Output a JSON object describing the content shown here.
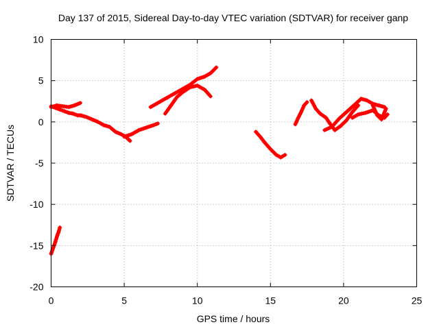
{
  "chart_data": {
    "type": "scatter",
    "title": "Day 137 of 2015, Sidereal Day-to-day VTEC variation (SDTVAR) for receiver ganp",
    "xlabel": "GPS time / hours",
    "ylabel": "SDTVAR / TECUs",
    "xlim": [
      0,
      25
    ],
    "ylim": [
      -20,
      10
    ],
    "xticks": [
      "0",
      "5",
      "10",
      "15",
      "20",
      "25"
    ],
    "yticks": [
      "-20",
      "-15",
      "-10",
      "-5",
      "0",
      "5",
      "10"
    ],
    "grid": true,
    "marker": "plus",
    "color": "#ff0000",
    "series": [
      {
        "x": [
          0.0,
          0.1,
          0.2,
          0.3,
          0.4,
          0.5,
          0.6
        ],
        "y": [
          -16.0,
          -15.5,
          -15.0,
          -14.5,
          -13.9,
          -13.4,
          -12.8
        ]
      },
      {
        "x": [
          0.0,
          0.3,
          0.6,
          0.9,
          1.2,
          1.5,
          1.8,
          2.0,
          2.4,
          2.8,
          3.2,
          3.6,
          4.0,
          4.4,
          4.8,
          5.1,
          5.4
        ],
        "y": [
          1.9,
          1.7,
          1.5,
          1.3,
          1.1,
          1.0,
          0.8,
          0.8,
          0.6,
          0.3,
          0.0,
          -0.4,
          -0.6,
          -1.2,
          -1.5,
          -1.8,
          -2.3
        ]
      },
      {
        "x": [
          0.0,
          0.4,
          0.8,
          1.2,
          1.6,
          2.0
        ],
        "y": [
          1.8,
          2.0,
          1.9,
          1.8,
          2.0,
          2.3
        ]
      },
      {
        "x": [
          5.0,
          5.5,
          6.0,
          6.5,
          7.0,
          7.3
        ],
        "y": [
          -1.8,
          -1.5,
          -1.0,
          -0.7,
          -0.4,
          -0.2
        ]
      },
      {
        "x": [
          6.8,
          7.2,
          7.6,
          8.0,
          8.5,
          9.0,
          9.5,
          10.0,
          10.5,
          10.9,
          11.3
        ],
        "y": [
          1.8,
          2.2,
          2.6,
          3.0,
          3.5,
          4.0,
          4.5,
          5.2,
          5.5,
          5.9,
          6.6
        ]
      },
      {
        "x": [
          7.8,
          8.2,
          8.6,
          9.0,
          9.5,
          10.0,
          10.5,
          10.9
        ],
        "y": [
          1.0,
          2.0,
          3.0,
          3.6,
          4.2,
          4.4,
          3.9,
          3.1
        ]
      },
      {
        "x": [
          14.0,
          14.3,
          14.6,
          15.0,
          15.4,
          15.7,
          16.0
        ],
        "y": [
          -1.2,
          -1.8,
          -2.5,
          -3.3,
          -4.0,
          -4.3,
          -4.0
        ]
      },
      {
        "x": [
          16.7,
          16.9,
          17.1,
          17.3,
          17.5
        ],
        "y": [
          -0.3,
          0.5,
          1.2,
          2.0,
          2.4
        ]
      },
      {
        "x": [
          17.8,
          18.1,
          18.4,
          18.8,
          19.1,
          19.4,
          19.8,
          20.2,
          20.6,
          21.0
        ],
        "y": [
          2.6,
          1.6,
          1.0,
          0.5,
          -0.3,
          -1.0,
          -0.5,
          0.2,
          1.2,
          2.0
        ]
      },
      {
        "x": [
          18.7,
          19.2,
          19.7,
          20.2,
          20.7,
          21.2,
          21.6,
          22.0,
          22.4,
          22.8
        ],
        "y": [
          -1.0,
          -0.6,
          0.4,
          1.2,
          2.0,
          2.8,
          2.6,
          2.2,
          2.0,
          1.8
        ]
      },
      {
        "x": [
          20.6,
          21.0,
          21.5,
          22.0,
          22.4,
          22.8,
          23.0
        ],
        "y": [
          0.5,
          0.9,
          1.1,
          1.4,
          0.8,
          0.5,
          0.9
        ]
      },
      {
        "x": [
          22.0,
          22.3,
          22.6,
          22.9
        ],
        "y": [
          2.0,
          0.8,
          0.3,
          1.6
        ]
      }
    ]
  }
}
